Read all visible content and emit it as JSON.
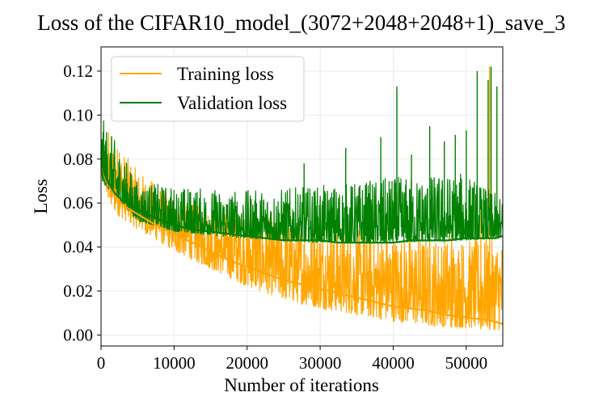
{
  "chart_data": {
    "type": "line",
    "title": "Loss of the CIFAR10_model_(3072+2048+2048+1)_save_3",
    "xlabel": "Number of iterations",
    "ylabel": "Loss",
    "xlim": [
      0,
      55000
    ],
    "ylim": [
      -0.005,
      0.131
    ],
    "xticks": [
      0,
      10000,
      20000,
      30000,
      40000,
      50000
    ],
    "xtick_labels": [
      "0",
      "10000",
      "20000",
      "30000",
      "40000",
      "50000"
    ],
    "yticks": [
      0.0,
      0.02,
      0.04,
      0.06,
      0.08,
      0.1,
      0.12
    ],
    "ytick_labels": [
      "0.00",
      "0.02",
      "0.04",
      "0.06",
      "0.08",
      "0.10",
      "0.12"
    ],
    "grid": true,
    "legend_position": "top-left",
    "series": [
      {
        "name": "Training loss",
        "color": "#FFA500",
        "x": [
          0,
          500,
          1000,
          2000,
          3000,
          5000,
          7500,
          10000,
          12500,
          15000,
          17500,
          20000,
          22500,
          25000,
          27500,
          30000,
          32500,
          35000,
          37500,
          40000,
          42500,
          45000,
          47500,
          50000,
          52500,
          54000,
          55000
        ],
        "y": [
          0.079,
          0.072,
          0.068,
          0.063,
          0.059,
          0.055,
          0.05,
          0.046,
          0.042,
          0.038,
          0.034,
          0.031,
          0.028,
          0.025,
          0.023,
          0.021,
          0.019,
          0.017,
          0.015,
          0.013,
          0.012,
          0.011,
          0.009,
          0.008,
          0.007,
          0.006,
          0.005
        ]
      },
      {
        "name": "Validation loss",
        "color": "#008000",
        "x": [
          0,
          500,
          1000,
          2000,
          3000,
          5000,
          7500,
          10000,
          12500,
          15000,
          17500,
          20000,
          22500,
          25000,
          27500,
          30000,
          32500,
          35000,
          37500,
          40000,
          42500,
          45000,
          47500,
          50000,
          52500,
          54000,
          55000
        ],
        "y": [
          0.079,
          0.073,
          0.069,
          0.064,
          0.061,
          0.057,
          0.053,
          0.05,
          0.048,
          0.047,
          0.046,
          0.045,
          0.044,
          0.043,
          0.043,
          0.043,
          0.042,
          0.042,
          0.042,
          0.042,
          0.043,
          0.043,
          0.043,
          0.044,
          0.044,
          0.044,
          0.045
        ]
      }
    ],
    "train_band": [
      {
        "x": 0,
        "lo": 0.07,
        "hi": 0.086
      },
      {
        "x": 2000,
        "lo": 0.055,
        "hi": 0.088
      },
      {
        "x": 5000,
        "lo": 0.048,
        "hi": 0.075
      },
      {
        "x": 10000,
        "lo": 0.038,
        "hi": 0.063
      },
      {
        "x": 15000,
        "lo": 0.03,
        "hi": 0.057
      },
      {
        "x": 20000,
        "lo": 0.022,
        "hi": 0.055
      },
      {
        "x": 25000,
        "lo": 0.016,
        "hi": 0.053
      },
      {
        "x": 30000,
        "lo": 0.012,
        "hi": 0.05
      },
      {
        "x": 35000,
        "lo": 0.009,
        "hi": 0.048
      },
      {
        "x": 40000,
        "lo": 0.006,
        "hi": 0.046
      },
      {
        "x": 45000,
        "lo": 0.004,
        "hi": 0.045
      },
      {
        "x": 50000,
        "lo": 0.003,
        "hi": 0.044
      },
      {
        "x": 55000,
        "lo": 0.002,
        "hi": 0.044
      }
    ],
    "val_band": [
      {
        "x": 0,
        "lo": 0.07,
        "hi": 0.1
      },
      {
        "x": 5000,
        "lo": 0.052,
        "hi": 0.07
      },
      {
        "x": 10000,
        "lo": 0.047,
        "hi": 0.068
      },
      {
        "x": 20000,
        "lo": 0.044,
        "hi": 0.066
      },
      {
        "x": 30000,
        "lo": 0.042,
        "hi": 0.068
      },
      {
        "x": 40000,
        "lo": 0.042,
        "hi": 0.072
      },
      {
        "x": 50000,
        "lo": 0.043,
        "hi": 0.074
      },
      {
        "x": 55000,
        "lo": 0.044,
        "hi": 0.062
      }
    ],
    "val_spikes": [
      {
        "x": 27800,
        "y": 0.078
      },
      {
        "x": 33500,
        "y": 0.085
      },
      {
        "x": 38300,
        "y": 0.09
      },
      {
        "x": 40500,
        "y": 0.113
      },
      {
        "x": 42500,
        "y": 0.082
      },
      {
        "x": 45000,
        "y": 0.095
      },
      {
        "x": 47000,
        "y": 0.088
      },
      {
        "x": 48500,
        "y": 0.091
      },
      {
        "x": 50000,
        "y": 0.093
      },
      {
        "x": 51500,
        "y": 0.12
      },
      {
        "x": 53000,
        "y": 0.116
      },
      {
        "x": 53400,
        "y": 0.122
      },
      {
        "x": 54200,
        "y": 0.113
      }
    ],
    "train_spikes": [
      {
        "x": 1000,
        "y": 0.092
      },
      {
        "x": 1400,
        "y": 0.09
      },
      {
        "x": 2500,
        "y": 0.083
      },
      {
        "x": 48000,
        "y": 0.047
      },
      {
        "x": 52000,
        "y": 0.06
      },
      {
        "x": 53200,
        "y": 0.122
      }
    ]
  }
}
